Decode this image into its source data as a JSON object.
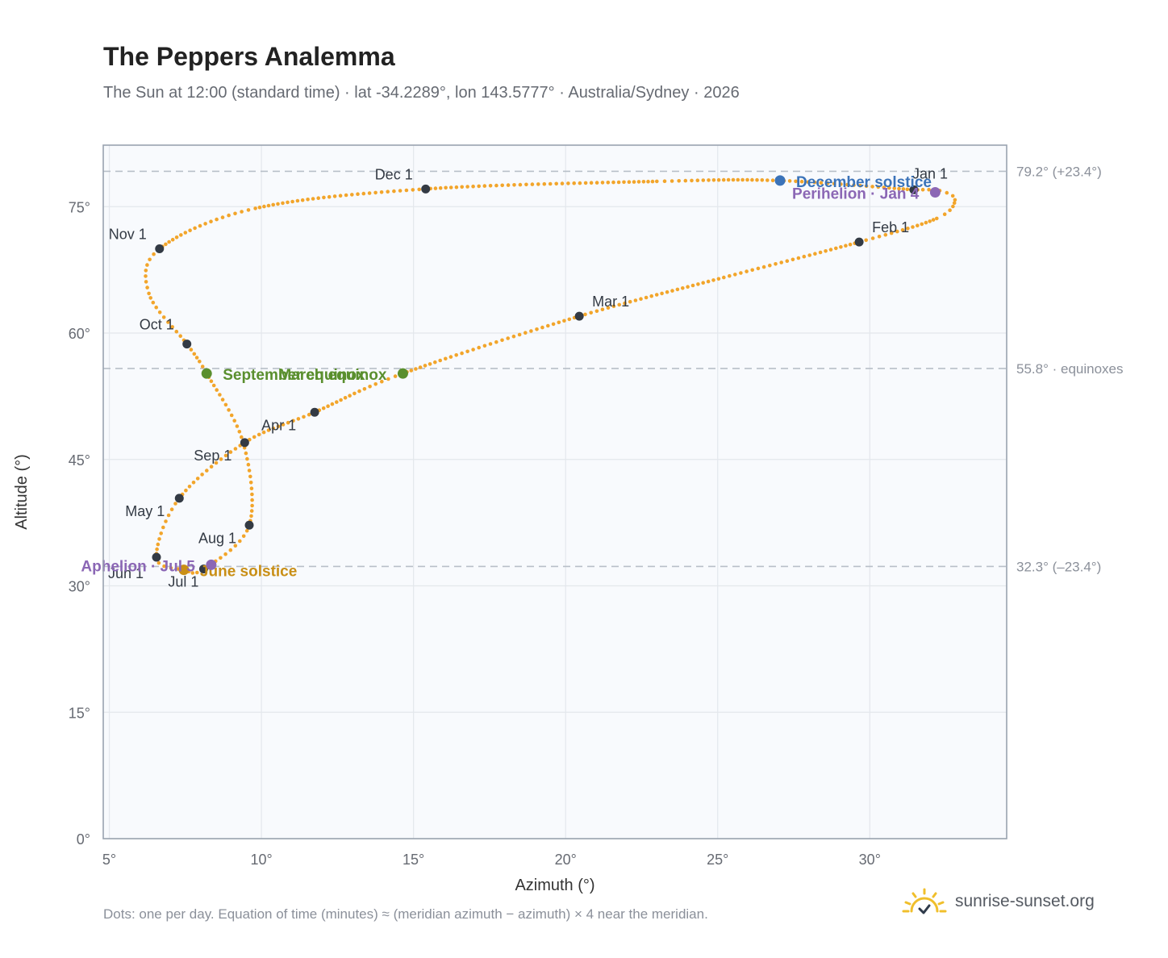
{
  "header": {
    "title": "The Peppers Analemma",
    "subtitle": "The Sun at 12:00 (standard time) · lat -34.2289°, lon 143.5777° · Australia/Sydney · 2026"
  },
  "footer": {
    "note": "Dots: one per day. Equation of time (minutes) ≈ (meridian azimuth − azimuth) × 4 near the meridian.",
    "brand": "sunrise-sunset.org",
    "logo_icon": "sun-logo-icon"
  },
  "colors": {
    "path": "#f2a52b",
    "month_marker": "#333a44",
    "equinox": "#5a8f2e",
    "solstice_december": "#3b73b9",
    "solstice_june": "#c98f16",
    "apsis": "#8b67b5",
    "grid": "#e3e7ec",
    "plot_bg": "#f8fafd",
    "reference": "#b8bfc8"
  },
  "chart_data": {
    "type": "scatter",
    "xlabel": "Azimuth (°)",
    "ylabel": "Altitude (°)",
    "xlim": [
      4.8,
      34.5
    ],
    "ylim": [
      0,
      82.3
    ],
    "x_ticks": [
      5,
      10,
      15,
      20,
      25,
      30
    ],
    "x_tick_labels": [
      "5°",
      "10°",
      "15°",
      "20°",
      "25°",
      "30°"
    ],
    "y_ticks": [
      0,
      15,
      30,
      45,
      60,
      75
    ],
    "y_tick_labels": [
      "0°",
      "15°",
      "30°",
      "45°",
      "60°",
      "75°"
    ],
    "grid": true,
    "reference_lines": [
      {
        "y": 79.2,
        "label": "79.2° (+23.4°)"
      },
      {
        "y": 55.8,
        "label": "55.8° · equinoxes"
      },
      {
        "y": 32.3,
        "label": "32.3° (–23.4°)"
      }
    ],
    "path_anchors": [
      {
        "x": 31.45,
        "y": 77.0
      },
      {
        "x": 32.3,
        "y": 76.9
      },
      {
        "x": 32.8,
        "y": 75.8
      },
      {
        "x": 32.2,
        "y": 73.6
      },
      {
        "x": 29.65,
        "y": 70.8
      },
      {
        "x": 25.2,
        "y": 66.6
      },
      {
        "x": 20.45,
        "y": 62.0
      },
      {
        "x": 14.65,
        "y": 55.2
      },
      {
        "x": 11.75,
        "y": 50.6
      },
      {
        "x": 9.45,
        "y": 47.0
      },
      {
        "x": 7.3,
        "y": 40.4
      },
      {
        "x": 6.55,
        "y": 33.4
      },
      {
        "x": 7.45,
        "y": 31.9
      },
      {
        "x": 8.1,
        "y": 32.0
      },
      {
        "x": 9.6,
        "y": 37.2
      },
      {
        "x": 9.4,
        "y": 47.0
      },
      {
        "x": 8.2,
        "y": 55.2
      },
      {
        "x": 7.55,
        "y": 58.7
      },
      {
        "x": 6.3,
        "y": 64.7
      },
      {
        "x": 6.65,
        "y": 70.0
      },
      {
        "x": 9.8,
        "y": 74.8
      },
      {
        "x": 15.4,
        "y": 77.1
      },
      {
        "x": 23.0,
        "y": 78.0
      },
      {
        "x": 27.0,
        "y": 78.1
      },
      {
        "x": 31.45,
        "y": 77.0
      }
    ],
    "month_markers": [
      {
        "label": "Jan 1",
        "x": 31.45,
        "y": 77.0
      },
      {
        "label": "Feb 1",
        "x": 29.65,
        "y": 70.8
      },
      {
        "label": "Mar 1",
        "x": 20.45,
        "y": 62.0
      },
      {
        "label": "Apr 1",
        "x": 11.75,
        "y": 50.6
      },
      {
        "label": "May 1",
        "x": 7.3,
        "y": 40.4
      },
      {
        "label": "Jun 1",
        "x": 6.55,
        "y": 33.4
      },
      {
        "label": "Jul 1",
        "x": 8.1,
        "y": 32.0
      },
      {
        "label": "Aug 1",
        "x": 9.6,
        "y": 37.2
      },
      {
        "label": "Sep 1",
        "x": 9.45,
        "y": 47.0
      },
      {
        "label": "Oct 1",
        "x": 7.55,
        "y": 58.7
      },
      {
        "label": "Nov 1",
        "x": 6.65,
        "y": 70.0
      },
      {
        "label": "Dec 1",
        "x": 15.4,
        "y": 77.1
      }
    ],
    "events": [
      {
        "label": "December solstice",
        "x": 27.05,
        "y": 78.1,
        "kind": "solstice_december"
      },
      {
        "label": "Perihelion · Jan 4",
        "x": 32.15,
        "y": 76.7,
        "kind": "apsis"
      },
      {
        "label": "March equinox",
        "x": 14.65,
        "y": 55.2,
        "kind": "equinox"
      },
      {
        "label": "September equinox",
        "x": 8.2,
        "y": 55.2,
        "kind": "equinox"
      },
      {
        "label": "June solstice",
        "x": 7.45,
        "y": 31.9,
        "kind": "solstice_june"
      },
      {
        "label": "Aphelion · Jul 5",
        "x": 8.35,
        "y": 32.5,
        "kind": "apsis"
      }
    ]
  }
}
